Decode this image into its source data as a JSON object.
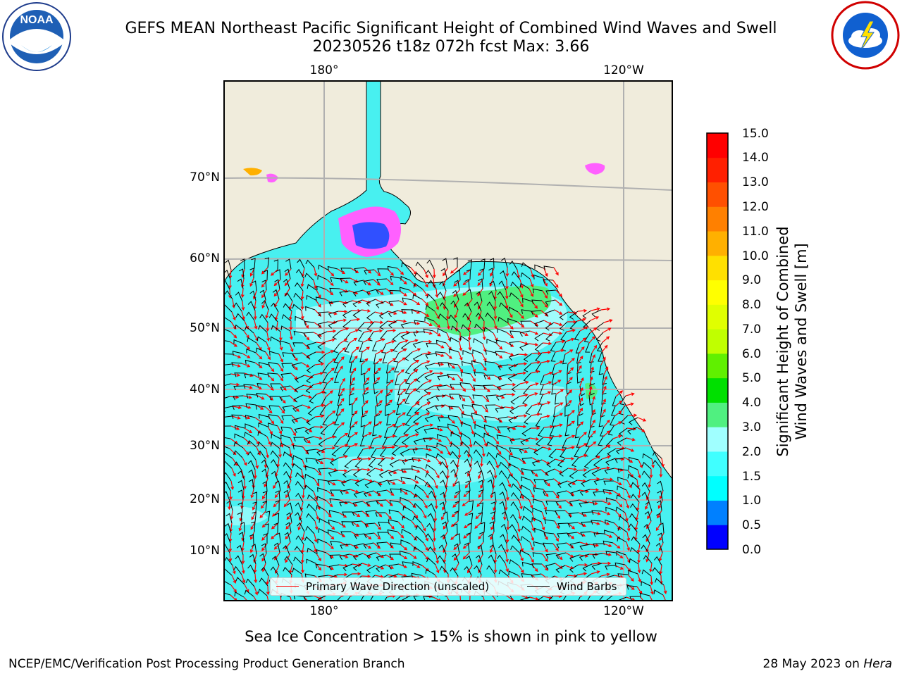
{
  "title_line1": "GEFS MEAN Northeast Pacific Significant Height of Combined Wind Waves and Swell",
  "title_line2": "20230526 t18z 072h fcst   Max: 3.66",
  "lon_labels_top": [
    "180°",
    "120°W"
  ],
  "lon_labels_bottom": [
    "180°",
    "120°W"
  ],
  "lat_labels": [
    "70°N",
    "60°N",
    "50°N",
    "40°N",
    "30°N",
    "20°N",
    "10°N"
  ],
  "colorbar": {
    "title_line1": "Significant Height of Combined",
    "title_line2": "Wind Waves and Swell [m]",
    "ticks": [
      "15.0",
      "14.0",
      "13.0",
      "12.0",
      "11.0",
      "10.0",
      "9.0",
      "8.0",
      "7.0",
      "6.0",
      "5.0",
      "4.0",
      "3.0",
      "2.0",
      "1.5",
      "1.0",
      "0.5",
      "0.0"
    ],
    "colors_bottom_to_top": [
      "#0000ff",
      "#0080ff",
      "#00ffff",
      "#40ffff",
      "#a0ffff",
      "#50f080",
      "#00e000",
      "#60f000",
      "#c0ff00",
      "#e0ff00",
      "#ffff00",
      "#ffe000",
      "#ffb000",
      "#ff8000",
      "#ff5000",
      "#ff2000",
      "#ff0000"
    ]
  },
  "legend": {
    "wave_label": "Primary Wave Direction (unscaled)",
    "wind_label": "Wind Barbs",
    "wave_color": "#ff0000",
    "wind_color": "#000000"
  },
  "footnote": "Sea Ice Concentration > 15% is shown in pink to yellow",
  "footer_left": "NCEP/EMC/Verification Post Processing Product Generation Branch",
  "footer_right_text": "28 May 2023 on",
  "footer_right_host": "Hera",
  "logos": {
    "left": "noaa-logo",
    "right": "nws-logo"
  },
  "colors": {
    "land": "#f0ecdc",
    "ocean_base": "#48f0f0",
    "ocean_light": "#a0fcfc",
    "ice": "#ff60ff",
    "grid": "#b0b0b0"
  }
}
